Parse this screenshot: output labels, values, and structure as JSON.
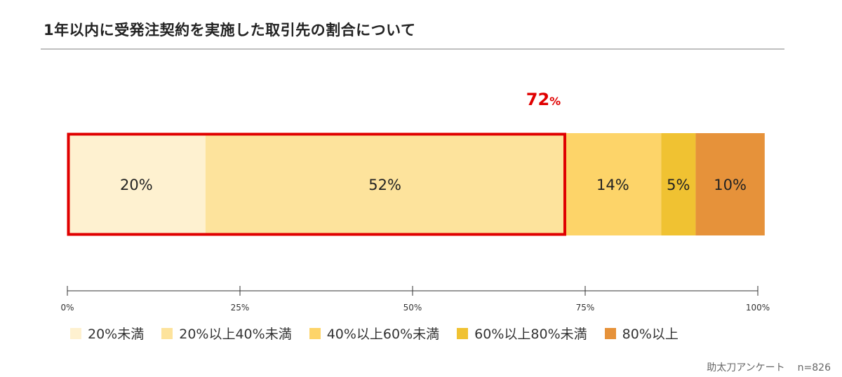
{
  "title": "1年以内に受発注契約を実施した取引先の割合について",
  "source": {
    "label": "助太刀アンケート",
    "n": "n=826"
  },
  "chart_data": {
    "type": "bar",
    "orientation": "horizontal-stacked",
    "series": [
      {
        "name": "20%未満",
        "value": 20,
        "label": "20%",
        "color": "#fef1d0"
      },
      {
        "name": "20%以上40%未満",
        "value": 52,
        "label": "52%",
        "color": "#fde39c"
      },
      {
        "name": "40%以上60%未満",
        "value": 14,
        "label": "14%",
        "color": "#fdd469"
      },
      {
        "name": "60%以上80%未満",
        "value": 5,
        "label": "5%",
        "color": "#f0c232"
      },
      {
        "name": "80%以上",
        "value": 10,
        "label": "10%",
        "color": "#e6923a"
      }
    ],
    "xlim": [
      0,
      100
    ],
    "ticks": [
      "0%",
      "25%",
      "50%",
      "75%",
      "100%"
    ],
    "highlight": {
      "from": 0,
      "to": 72,
      "value": "72",
      "unit": "%",
      "color": "#e00000"
    },
    "legend_position": "bottom"
  }
}
